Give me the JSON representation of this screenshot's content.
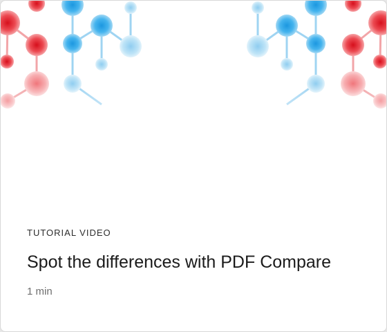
{
  "card": {
    "eyebrow": "TUTORIAL VIDEO",
    "title": "Spot the differences with PDF Compare",
    "duration": "1 min"
  },
  "hero": {
    "illustration": "molecule-network-illustration",
    "colors": {
      "red": "#e8343e",
      "light_red": "#f7a6a8",
      "blue": "#2ba6e8",
      "light_blue": "#a7d9f3"
    }
  }
}
